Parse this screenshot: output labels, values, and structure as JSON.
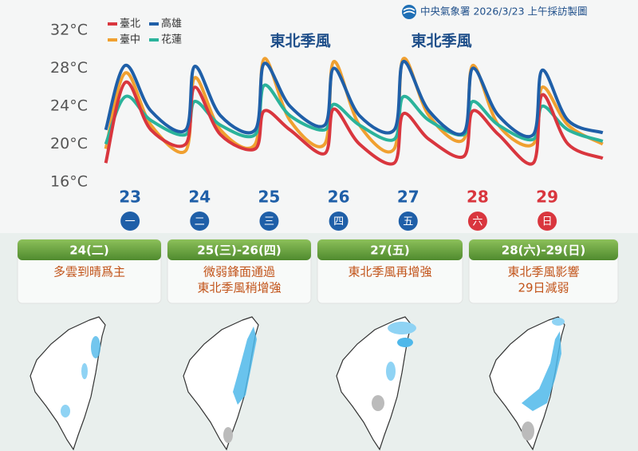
{
  "header": {
    "title": "中央氣象署 2026/3/23 上午採訪製圖"
  },
  "chart_data": {
    "type": "line",
    "x": [
      22.65,
      22.93,
      23.3,
      23.8,
      23.93,
      24.3,
      24.8,
      24.93,
      25.3,
      25.8,
      25.93,
      26.3,
      26.8,
      26.93,
      27.3,
      27.8,
      27.93,
      28.3,
      28.8,
      28.93,
      29.3,
      29.8
    ],
    "series": [
      {
        "name": "臺北",
        "color": "#d9363e",
        "values": [
          18,
          26.5,
          21.5,
          20,
          26,
          21,
          19.5,
          23.5,
          21.5,
          19,
          23.7,
          20,
          18,
          23.2,
          20.5,
          18.7,
          23.5,
          21,
          18,
          25.2,
          20,
          18.5
        ]
      },
      {
        "name": "高雄",
        "color": "#1f5fa8",
        "values": [
          21.5,
          28.3,
          23.5,
          21.5,
          28.2,
          23,
          21.5,
          28.5,
          24,
          22,
          28,
          23,
          21.5,
          28.7,
          23.5,
          21.2,
          28,
          23,
          21,
          27.8,
          22.5,
          21.2
        ]
      },
      {
        "name": "臺中",
        "color": "#f0a030",
        "values": [
          19.5,
          27.5,
          22,
          19.3,
          27,
          21.5,
          20,
          29,
          22.5,
          20,
          28.7,
          22,
          19.5,
          29,
          23,
          20.5,
          28.3,
          22,
          20,
          26,
          22,
          20
        ]
      },
      {
        "name": "花蓮",
        "color": "#2bb39b",
        "values": [
          20,
          25,
          22.5,
          21,
          24.5,
          22,
          21,
          26.2,
          23,
          21.5,
          24.2,
          22,
          20.5,
          25,
          22.5,
          21,
          24.5,
          22,
          20.5,
          24,
          21.5,
          20.3
        ]
      }
    ],
    "xlim": [
      22.62,
      30.02
    ],
    "xticks": [
      23,
      24,
      25,
      26,
      27,
      28,
      29
    ],
    "weekdays": [
      "一",
      "二",
      "三",
      "四",
      "五",
      "六",
      "日"
    ],
    "x_label_colors": [
      "#1f5fa8",
      "#1f5fa8",
      "#1f5fa8",
      "#1f5fa8",
      "#1f5fa8",
      "#d9363e",
      "#d9363e"
    ],
    "ylim": [
      16,
      32
    ],
    "yticks": [
      {
        "value": 16,
        "label": "16°C"
      },
      {
        "value": 20,
        "label": "20°C"
      },
      {
        "value": 24,
        "label": "24°C"
      },
      {
        "value": 28,
        "label": "28°C"
      },
      {
        "value": 32,
        "label": "32°C"
      }
    ],
    "annotations": [
      {
        "text": "東北季風",
        "x": 25.45
      },
      {
        "text": "東北季風",
        "x": 27.48
      }
    ]
  },
  "panels": [
    {
      "title": "24(二)",
      "lines": [
        "多雲到晴爲主"
      ]
    },
    {
      "title": "25(三)-26(四)",
      "lines": [
        "微弱鋒面通過",
        "東北季風稍增強"
      ]
    },
    {
      "title": "27(五)",
      "lines": [
        "東北季風再增強"
      ]
    },
    {
      "title": "28(六)-29(日)",
      "lines": [
        "東北季風影響",
        "29日減弱"
      ]
    }
  ]
}
